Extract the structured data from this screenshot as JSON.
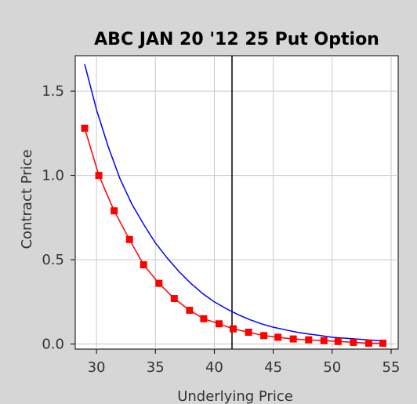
{
  "chart_data": {
    "type": "line",
    "title": "ABC JAN 20 '12 25 Put Option",
    "xlabel": "Underlying Price",
    "ylabel": "Contract Price",
    "xlim": [
      28.2,
      55.6
    ],
    "ylim": [
      -0.03,
      1.71
    ],
    "xticks": [
      30,
      35,
      40,
      45,
      50,
      55
    ],
    "yticks": [
      0.0,
      0.5,
      1.0,
      1.5
    ],
    "xtick_labels": [
      "30",
      "35",
      "40",
      "45",
      "50",
      "55"
    ],
    "ytick_labels": [
      "0.0",
      "0.5",
      "1.0",
      "1.5"
    ],
    "grid": true,
    "vertical_marker_x": 41.5,
    "series": [
      {
        "style": "line",
        "color": "#0000ff",
        "x": [
          29.0,
          30.0,
          31.0,
          32.0,
          33.0,
          34.0,
          35.0,
          36.0,
          37.0,
          38.0,
          39.0,
          40.0,
          41.0,
          42.0,
          43.0,
          44.0,
          45.0,
          46.0,
          47.0,
          48.0,
          49.0,
          50.0,
          51.0,
          52.0,
          53.0,
          54.0
        ],
        "values": [
          1.66,
          1.39,
          1.17,
          0.98,
          0.83,
          0.71,
          0.6,
          0.51,
          0.43,
          0.36,
          0.3,
          0.25,
          0.21,
          0.175,
          0.145,
          0.12,
          0.1,
          0.085,
          0.07,
          0.06,
          0.05,
          0.04,
          0.035,
          0.03,
          0.025,
          0.02
        ]
      },
      {
        "style": "line-markers",
        "color": "#ff0000",
        "x": [
          29.0,
          30.2,
          31.5,
          32.8,
          34.0,
          35.3,
          36.6,
          37.9,
          39.1,
          40.4,
          41.6,
          42.9,
          44.2,
          45.4,
          46.7,
          48.0,
          49.3,
          50.5,
          51.8,
          53.1,
          54.3
        ],
        "values": [
          1.28,
          1.0,
          0.79,
          0.62,
          0.47,
          0.36,
          0.27,
          0.2,
          0.15,
          0.12,
          0.09,
          0.07,
          0.05,
          0.04,
          0.03,
          0.025,
          0.02,
          0.015,
          0.01,
          0.005,
          0.005
        ]
      }
    ]
  }
}
